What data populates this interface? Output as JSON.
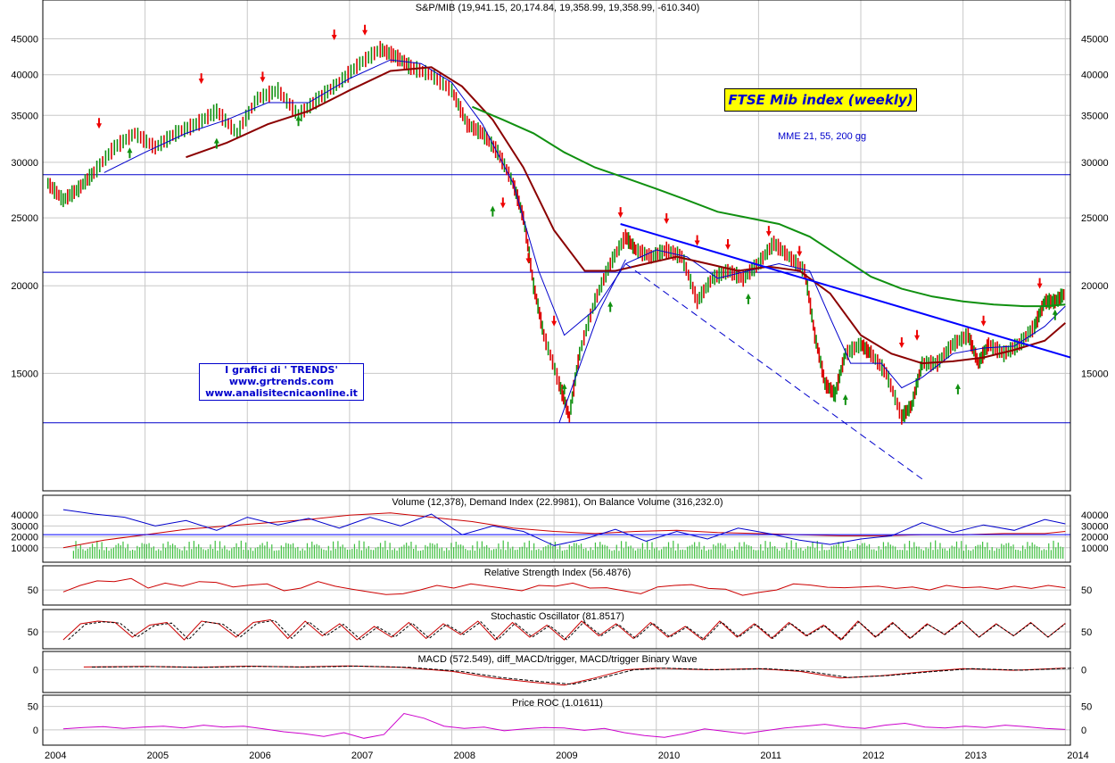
{
  "chart_data": [
    {
      "type": "line",
      "title": "S&P/MIB (19,941.15, 20,174.84, 19,358.99, 19,358.99, -610.340)",
      "annotation_title": "FTSE Mib  index (weekly)",
      "annotation_note": "MME 21, 55, 200 gg",
      "credits": [
        "I grafici di ' TRENDS'",
        "www.grtrends.com",
        "www.analisitecnicaonline.it"
      ],
      "log_scale": true,
      "ylim": [
        10500,
        48500
      ],
      "yticks": [
        15000,
        20000,
        25000,
        30000,
        35000,
        40000,
        45000
      ],
      "x_labels": [
        "2004",
        "2005",
        "2006",
        "2007",
        "2008",
        "2009",
        "2010",
        "2011",
        "2012",
        "2013",
        "2014"
      ],
      "xlim": [
        2004.0,
        2014.05
      ],
      "horizontal_levels": [
        28800,
        20900,
        12750
      ],
      "series": [
        {
          "color": "#228b22",
          "x": [
            2004.05,
            2004.2,
            2004.35,
            2004.5,
            2004.7,
            2004.9,
            2005.1,
            2005.3,
            2005.5,
            2005.7,
            2005.9,
            2006.1,
            2006.3,
            2006.5,
            2006.7,
            2006.9,
            2007.1,
            2007.3,
            2007.45,
            2007.6,
            2007.8,
            2008.0,
            2008.15,
            2008.3,
            2008.45,
            2008.6,
            2008.7,
            2008.8,
            2008.9,
            2009.05,
            2009.15,
            2009.25,
            2009.4,
            2009.55,
            2009.7,
            2009.8,
            2009.95,
            2010.1,
            2010.25,
            2010.4,
            2010.55,
            2010.7,
            2010.85,
            2011.0,
            2011.15,
            2011.3,
            2011.45,
            2011.55,
            2011.65,
            2011.75,
            2011.85,
            2012.0,
            2012.1,
            2012.25,
            2012.4,
            2012.5,
            2012.6,
            2012.75,
            2012.9,
            2013.05,
            2013.15,
            2013.25,
            2013.4,
            2013.55,
            2013.7,
            2013.8,
            2013.9,
            2014.0
          ],
          "values": [
            28000,
            26500,
            27500,
            29000,
            31500,
            33000,
            31500,
            33000,
            34000,
            35500,
            33000,
            37000,
            38000,
            35000,
            37000,
            39000,
            41500,
            43500,
            42500,
            41000,
            40000,
            38000,
            34000,
            33000,
            31000,
            28000,
            25000,
            20000,
            17000,
            14500,
            13000,
            16000,
            19000,
            21500,
            23500,
            22500,
            22000,
            22500,
            22000,
            19000,
            20500,
            21000,
            20500,
            21500,
            23000,
            22000,
            21000,
            17000,
            14500,
            14000,
            16000,
            16500,
            16000,
            15000,
            13000,
            13500,
            15500,
            15500,
            16500,
            17000,
            15500,
            16500,
            16000,
            16500,
            17500,
            19000,
            19000,
            19500
          ]
        },
        {
          "color": "#0000cc",
          "x": [
            2004.6,
            2005.0,
            2005.4,
            2005.8,
            2006.2,
            2006.6,
            2007.0,
            2007.4,
            2007.7,
            2008.0,
            2008.3,
            2008.6,
            2008.85,
            2009.1,
            2009.4,
            2009.7,
            2010.0,
            2010.3,
            2010.6,
            2010.9,
            2011.2,
            2011.5,
            2011.7,
            2011.9,
            2012.2,
            2012.4,
            2012.6,
            2012.9,
            2013.2,
            2013.5,
            2013.8,
            2014.0
          ],
          "values": [
            29000,
            31000,
            33000,
            34500,
            36500,
            36500,
            39500,
            42000,
            41500,
            39000,
            34000,
            28000,
            21000,
            17000,
            18500,
            21500,
            22500,
            22000,
            20500,
            21000,
            21500,
            21000,
            18000,
            15500,
            15500,
            14300,
            14800,
            16000,
            16300,
            16400,
            17500,
            18700
          ]
        },
        {
          "color": "#8b0000",
          "x": [
            2005.4,
            2005.8,
            2006.2,
            2006.6,
            2007.0,
            2007.4,
            2007.8,
            2008.1,
            2008.4,
            2008.7,
            2009.0,
            2009.3,
            2009.6,
            2009.9,
            2010.2,
            2010.5,
            2010.8,
            2011.1,
            2011.4,
            2011.7,
            2012.0,
            2012.3,
            2012.6,
            2012.9,
            2013.2,
            2013.5,
            2013.8,
            2014.0
          ],
          "values": [
            30500,
            32000,
            34000,
            35500,
            38000,
            40500,
            41000,
            38500,
            34500,
            29500,
            24000,
            21000,
            21000,
            21500,
            22000,
            21500,
            21000,
            21300,
            21000,
            19500,
            17000,
            16000,
            15500,
            15600,
            15800,
            16200,
            16700,
            17700
          ]
        },
        {
          "color": "#109010",
          "x": [
            2008.2,
            2008.5,
            2008.8,
            2009.1,
            2009.4,
            2009.7,
            2010.0,
            2010.3,
            2010.6,
            2010.9,
            2011.2,
            2011.5,
            2011.8,
            2012.1,
            2012.4,
            2012.7,
            2013.0,
            2013.3,
            2013.6,
            2013.8,
            2014.0
          ],
          "values": [
            36000,
            34500,
            33000,
            31000,
            29500,
            28500,
            27500,
            26500,
            25500,
            25000,
            24500,
            23500,
            22000,
            20600,
            19800,
            19300,
            19000,
            18800,
            18700,
            18700,
            18800
          ]
        },
        {
          "color": "#0000ff",
          "x": [
            2009.65,
            2014.05
          ],
          "values": [
            24500,
            15800
          ]
        }
      ]
    },
    {
      "type": "bar",
      "title": "Volume (12,378), Demand Index (22.9981), On Balance Volume (316,232.0)",
      "ylim": [
        0,
        50000
      ],
      "yticks": [
        10000,
        20000,
        30000,
        40000
      ],
      "ytick_labels": [
        "10000",
        "20000",
        "30000",
        "40000"
      ],
      "series": [
        {
          "color": "#0000cc",
          "x": [
            2004.2,
            2004.5,
            2004.8,
            2005.1,
            2005.4,
            2005.7,
            2006.0,
            2006.3,
            2006.6,
            2006.9,
            2007.2,
            2007.5,
            2007.8,
            2008.1,
            2008.4,
            2008.7,
            2009.0,
            2009.3,
            2009.6,
            2009.9,
            2010.2,
            2010.5,
            2010.8,
            2011.1,
            2011.4,
            2011.7,
            2012.0,
            2012.3,
            2012.6,
            2012.9,
            2013.2,
            2013.5,
            2013.8,
            2014.0
          ],
          "values": [
            45000,
            41000,
            38000,
            30000,
            35000,
            26000,
            38000,
            31000,
            37000,
            28000,
            38000,
            30000,
            41000,
            22000,
            30000,
            25000,
            12000,
            18000,
            27000,
            16000,
            25000,
            18000,
            28000,
            23000,
            17000,
            13000,
            18000,
            21000,
            33000,
            24000,
            31000,
            26000,
            36000,
            32000
          ]
        },
        {
          "color": "#cc0000",
          "x": [
            2004.2,
            2004.6,
            2005.0,
            2005.4,
            2005.8,
            2006.2,
            2006.6,
            2007.0,
            2007.4,
            2007.8,
            2008.2,
            2008.6,
            2009.0,
            2009.4,
            2009.8,
            2010.2,
            2010.6,
            2011.0,
            2011.4,
            2011.8,
            2012.2,
            2012.6,
            2013.0,
            2013.4,
            2013.8,
            2014.0
          ],
          "values": [
            10000,
            17000,
            22000,
            27000,
            30000,
            33000,
            36000,
            40000,
            42000,
            38000,
            34000,
            28000,
            25000,
            23000,
            25000,
            26000,
            24000,
            23000,
            22000,
            21000,
            21000,
            22000,
            22000,
            23000,
            23000,
            25000
          ]
        },
        {
          "color": "#0000ff",
          "values": [
            22000,
            22000
          ]
        },
        {
          "color": "#40c040",
          "values": [
            12000
          ]
        }
      ]
    },
    {
      "type": "line",
      "title": "Relative Strength Index (56.4876)",
      "ylim": [
        20,
        90
      ],
      "yticks": [
        50
      ],
      "ytick_labels": [
        "50"
      ],
      "series": [
        {
          "color": "#cc0000",
          "values": [
            45,
            62,
            74,
            72,
            80,
            55,
            68,
            60,
            72,
            70,
            58,
            63,
            66,
            48,
            55,
            72,
            60,
            52,
            45,
            38,
            40,
            50,
            62,
            55,
            66,
            60,
            54,
            48,
            62,
            60,
            68,
            55,
            56,
            48,
            40,
            58,
            62,
            64,
            54,
            52,
            36,
            44,
            50,
            66,
            63,
            57,
            56,
            58,
            60,
            54,
            58,
            50,
            62,
            56,
            58,
            52,
            60,
            54,
            62,
            56
          ]
        }
      ]
    },
    {
      "type": "line",
      "title": "Stochastic Oscillator (81.8517)",
      "ylim": [
        0,
        100
      ],
      "yticks": [
        50
      ],
      "ytick_labels": [
        "50"
      ],
      "series": [
        {
          "color": "#cc0000",
          "values": [
            20,
            80,
            90,
            85,
            30,
            75,
            85,
            20,
            90,
            80,
            30,
            85,
            95,
            25,
            90,
            35,
            80,
            20,
            70,
            30,
            85,
            25,
            80,
            40,
            90,
            20,
            85,
            30,
            75,
            20,
            90,
            35,
            80,
            25,
            85,
            30,
            70,
            20,
            90,
            30,
            80,
            25,
            85,
            35,
            75,
            20,
            90,
            30,
            85,
            25,
            80,
            40,
            90,
            30,
            80,
            35,
            85,
            30,
            82
          ]
        }
      ]
    },
    {
      "type": "line",
      "title": "MACD (572.549), diff_MACD/trigger, MACD/trigger Binary Wave",
      "ylim": [
        -3500,
        1700
      ],
      "yticks": [
        0
      ],
      "ytick_labels": [
        "0"
      ],
      "series": [
        {
          "color": "#cc0000",
          "x": [
            2004.4,
            2005.0,
            2005.5,
            2006.0,
            2006.5,
            2007.0,
            2007.5,
            2008.0,
            2008.4,
            2008.8,
            2009.1,
            2009.4,
            2009.7,
            2010.0,
            2010.5,
            2011.0,
            2011.4,
            2011.8,
            2012.2,
            2012.6,
            2013.0,
            2013.5,
            2014.0
          ],
          "values": [
            500,
            600,
            450,
            650,
            500,
            700,
            450,
            -300,
            -1500,
            -2300,
            -2800,
            -1500,
            0,
            300,
            0,
            200,
            -300,
            -1500,
            -1100,
            -400,
            200,
            -100,
            300
          ]
        }
      ]
    },
    {
      "type": "line",
      "title": "Price ROC (1.01611)",
      "ylim": [
        -25,
        55
      ],
      "yticks": [
        0,
        50
      ],
      "ytick_labels": [
        "0",
        "50"
      ],
      "series": [
        {
          "color": "#cc00cc",
          "values": [
            2,
            5,
            7,
            3,
            6,
            8,
            4,
            10,
            6,
            8,
            2,
            -4,
            -8,
            -14,
            -6,
            -18,
            -10,
            35,
            25,
            8,
            3,
            6,
            -2,
            2,
            5,
            4,
            -1,
            3,
            -6,
            -12,
            -16,
            -8,
            2,
            -3,
            -8,
            -2,
            4,
            8,
            12,
            6,
            3,
            10,
            14,
            6,
            4,
            8,
            5,
            10,
            7,
            3,
            1
          ]
        }
      ]
    }
  ]
}
